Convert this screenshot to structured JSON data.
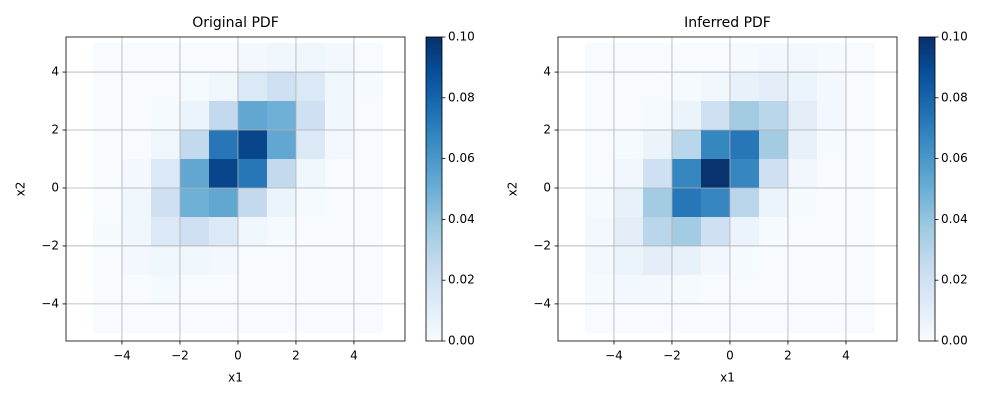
{
  "chart_data": [
    {
      "type": "heatmap",
      "title": "Original PDF",
      "xlabel": "x1",
      "ylabel": "x2",
      "xbins": [
        -5,
        -4,
        -3,
        -2,
        -1,
        0,
        1,
        2,
        3,
        4,
        5
      ],
      "ybins": [
        -5,
        -4,
        -3,
        -2,
        -1,
        0,
        1,
        2,
        3,
        4,
        5
      ],
      "z": [
        [
          0,
          0,
          0,
          0,
          0,
          0,
          0,
          0,
          0,
          0
        ],
        [
          0,
          0,
          0.001,
          0,
          0,
          0,
          0,
          0,
          0,
          0
        ],
        [
          0,
          0.002,
          0.004,
          0.004,
          0.002,
          0,
          0,
          0,
          0,
          0
        ],
        [
          0.001,
          0.004,
          0.014,
          0.021,
          0.014,
          0.004,
          0.001,
          0,
          0,
          0
        ],
        [
          0,
          0.004,
          0.021,
          0.049,
          0.053,
          0.026,
          0.006,
          0.001,
          0,
          0
        ],
        [
          0,
          0.002,
          0.014,
          0.053,
          0.092,
          0.073,
          0.026,
          0.004,
          0,
          0
        ],
        [
          0,
          0,
          0.004,
          0.026,
          0.073,
          0.092,
          0.053,
          0.014,
          0.002,
          0
        ],
        [
          0,
          0,
          0.001,
          0.006,
          0.026,
          0.053,
          0.049,
          0.021,
          0.004,
          0
        ],
        [
          0,
          0,
          0,
          0.001,
          0.004,
          0.014,
          0.021,
          0.014,
          0.004,
          0.001
        ],
        [
          0,
          0,
          0,
          0,
          0,
          0.002,
          0.004,
          0.004,
          0.002,
          0
        ]
      ],
      "xlim": [
        -5.93,
        5.76
      ],
      "ylim": [
        -5.28,
        5.21
      ],
      "xticks": [
        {
          "value": -4,
          "label": "−4"
        },
        {
          "value": -2,
          "label": "−2"
        },
        0,
        2,
        4
      ],
      "yticks": [
        {
          "value": -4,
          "label": "−4"
        },
        {
          "value": -2,
          "label": "−2"
        },
        0,
        2,
        4
      ],
      "grid": true,
      "colormap": "Blues",
      "clim": [
        0,
        0.1
      ],
      "cticks": [
        {
          "value": 0,
          "label": "0.00"
        },
        {
          "value": 0.02,
          "label": "0.02"
        },
        {
          "value": 0.04,
          "label": "0.04"
        },
        {
          "value": 0.06,
          "label": "0.06"
        },
        {
          "value": 0.08,
          "label": "0.08"
        },
        {
          "value": 0.1,
          "label": "0.10"
        }
      ]
    },
    {
      "type": "heatmap",
      "title": "Inferred PDF",
      "xlabel": "x1",
      "ylabel": "x2",
      "xbins": [
        -5,
        -4,
        -3,
        -2,
        -1,
        0,
        1,
        2,
        3,
        4,
        5
      ],
      "ybins": [
        -5,
        -4,
        -3,
        -2,
        -1,
        0,
        1,
        2,
        3,
        4,
        5
      ],
      "z": [
        [
          0,
          0,
          0,
          0,
          0,
          0,
          0,
          0,
          0,
          0
        ],
        [
          0.001,
          0.002,
          0.002,
          0.001,
          0,
          0,
          0,
          0,
          0,
          0
        ],
        [
          0.002,
          0.006,
          0.01,
          0.008,
          0.003,
          0.001,
          0,
          0,
          0,
          0
        ],
        [
          0.002,
          0.01,
          0.029,
          0.036,
          0.021,
          0.006,
          0.001,
          0,
          0,
          0
        ],
        [
          0.001,
          0.008,
          0.036,
          0.073,
          0.067,
          0.029,
          0.006,
          0.001,
          0,
          0
        ],
        [
          0,
          0.003,
          0.021,
          0.067,
          0.099,
          0.067,
          0.021,
          0.003,
          0,
          0
        ],
        [
          0,
          0.001,
          0.006,
          0.029,
          0.067,
          0.073,
          0.036,
          0.008,
          0.001,
          0
        ],
        [
          0,
          0,
          0.001,
          0.006,
          0.021,
          0.036,
          0.029,
          0.01,
          0.002,
          0
        ],
        [
          0,
          0,
          0,
          0.001,
          0.003,
          0.008,
          0.01,
          0.006,
          0.002,
          0
        ],
        [
          0,
          0,
          0,
          0,
          0,
          0.001,
          0.002,
          0.002,
          0.001,
          0
        ]
      ],
      "xlim": [
        -5.93,
        5.76
      ],
      "ylim": [
        -5.28,
        5.21
      ],
      "xticks": [
        {
          "value": -4,
          "label": "−4"
        },
        {
          "value": -2,
          "label": "−2"
        },
        0,
        2,
        4
      ],
      "yticks": [
        {
          "value": -4,
          "label": "−4"
        },
        {
          "value": -2,
          "label": "−2"
        },
        0,
        2,
        4
      ],
      "grid": true,
      "colormap": "Blues",
      "clim": [
        0,
        0.1
      ],
      "cticks": [
        {
          "value": 0,
          "label": "0.00"
        },
        {
          "value": 0.02,
          "label": "0.02"
        },
        {
          "value": 0.04,
          "label": "0.04"
        },
        {
          "value": 0.06,
          "label": "0.06"
        },
        {
          "value": 0.08,
          "label": "0.08"
        },
        {
          "value": 0.1,
          "label": "0.10"
        }
      ]
    }
  ]
}
